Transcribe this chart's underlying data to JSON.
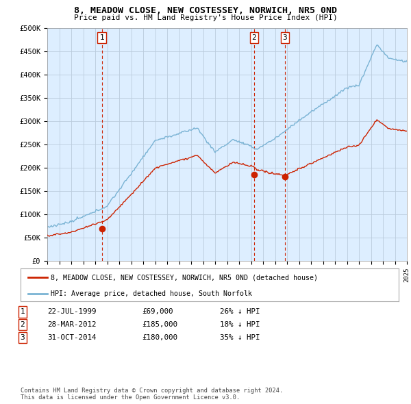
{
  "title": "8, MEADOW CLOSE, NEW COSTESSEY, NORWICH, NR5 0ND",
  "subtitle": "Price paid vs. HM Land Registry's House Price Index (HPI)",
  "ylim": [
    0,
    500000
  ],
  "yticks": [
    0,
    50000,
    100000,
    150000,
    200000,
    250000,
    300000,
    350000,
    400000,
    450000,
    500000
  ],
  "ytick_labels": [
    "£0",
    "£50K",
    "£100K",
    "£150K",
    "£200K",
    "£250K",
    "£300K",
    "£350K",
    "£400K",
    "£450K",
    "£500K"
  ],
  "hpi_color": "#7ab3d4",
  "price_color": "#cc2200",
  "bg_color": "#ddeeff",
  "grid_color": "#bbccdd",
  "sale_points": [
    {
      "date_num": 1999.55,
      "price": 69000,
      "label": "1"
    },
    {
      "date_num": 2012.24,
      "price": 185000,
      "label": "2"
    },
    {
      "date_num": 2014.83,
      "price": 180000,
      "label": "3"
    }
  ],
  "legend_entries": [
    {
      "label": "8, MEADOW CLOSE, NEW COSTESSEY, NORWICH, NR5 0ND (detached house)",
      "color": "#cc2200"
    },
    {
      "label": "HPI: Average price, detached house, South Norfolk",
      "color": "#7ab3d4"
    }
  ],
  "table_rows": [
    {
      "num": "1",
      "date": "22-JUL-1999",
      "price": "£69,000",
      "hpi": "26% ↓ HPI"
    },
    {
      "num": "2",
      "date": "28-MAR-2012",
      "price": "£185,000",
      "hpi": "18% ↓ HPI"
    },
    {
      "num": "3",
      "date": "31-OCT-2014",
      "price": "£180,000",
      "hpi": "35% ↓ HPI"
    }
  ],
  "footer": "Contains HM Land Registry data © Crown copyright and database right 2024.\nThis data is licensed under the Open Government Licence v3.0.",
  "xmin": 1995,
  "xmax": 2025
}
